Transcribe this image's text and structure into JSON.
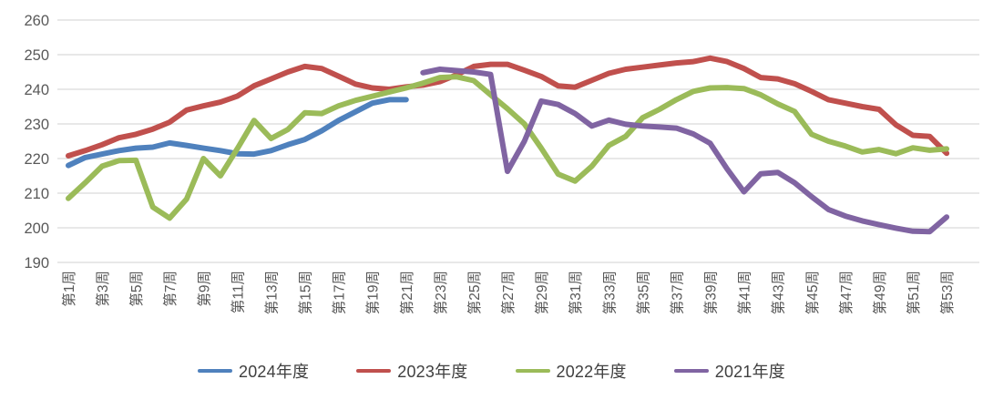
{
  "chart_data": {
    "type": "line",
    "title": "",
    "xlabel": "",
    "ylabel": "",
    "ylim": [
      190,
      260
    ],
    "y_ticks": [
      260,
      250,
      240,
      230,
      220,
      210,
      200,
      190
    ],
    "weeks_total": 53,
    "x_tick_step": 2,
    "x_tick_labels": [
      "第1周",
      "第3周",
      "第5周",
      "第7周",
      "第9周",
      "第11周",
      "第13周",
      "第15周",
      "第17周",
      "第19周",
      "第21周",
      "第23周",
      "第25周",
      "第27周",
      "第29周",
      "第31周",
      "第33周",
      "第35周",
      "第37周",
      "第39周",
      "第41周",
      "第43周",
      "第45周",
      "第47周",
      "第49周",
      "第51周",
      "第53周"
    ],
    "grid": "horizontal",
    "legend_position": "bottom",
    "colors": {
      "grid_line": "#d9d9d9",
      "tick_text": "#595959",
      "legend_text": "#3f3f3f",
      "background": "#ffffff"
    },
    "series": [
      {
        "name": "2024年度",
        "color": "#4F81BD",
        "values": [
          218,
          220.3,
          221.3,
          222.3,
          223,
          223.3,
          224.5,
          223.8,
          223,
          222.3,
          221.4,
          221.3,
          222.3,
          224,
          225.5,
          228,
          231,
          233.5,
          236,
          237,
          237,
          null,
          null,
          null,
          null,
          null,
          null,
          null,
          null,
          null,
          null,
          null,
          null,
          null,
          null,
          null,
          null,
          null,
          null,
          null,
          null,
          null,
          null,
          null,
          null,
          null,
          null,
          null,
          null,
          null,
          null,
          null,
          null
        ]
      },
      {
        "name": "2023年度",
        "color": "#C0504D",
        "values": [
          220.8,
          222.3,
          224,
          226,
          227,
          228.5,
          230.5,
          234,
          235.2,
          236.3,
          238,
          241,
          243,
          245,
          246.6,
          246,
          243.8,
          241.5,
          240.4,
          240,
          240.7,
          241.2,
          242.2,
          244.2,
          246.6,
          247.2,
          247.2,
          245.5,
          243.7,
          241,
          240.6,
          242.6,
          244.6,
          245.8,
          246.4,
          247,
          247.6,
          248,
          249,
          248,
          246,
          243.4,
          243,
          241.6,
          239.4,
          237,
          236,
          235,
          234.2,
          229.7,
          226.7,
          226.4,
          221.5
        ]
      },
      {
        "name": "2022年度",
        "color": "#9BBB59",
        "values": [
          208.5,
          213,
          217.8,
          219.4,
          219.5,
          206,
          202.8,
          208.3,
          220,
          215,
          222.8,
          231,
          225.8,
          228.4,
          233.2,
          233,
          235.2,
          236.8,
          238,
          239.2,
          240.4,
          241.8,
          243.4,
          243.6,
          242.5,
          238.4,
          234.4,
          230,
          223,
          215.5,
          213.5,
          217.8,
          223.8,
          226.4,
          231.8,
          234.2,
          237,
          239.4,
          240.4,
          240.5,
          240.2,
          238.4,
          235.8,
          233.6,
          227,
          225,
          223.6,
          221.9,
          222.6,
          221.4,
          223.1,
          222.4,
          222.8
        ]
      },
      {
        "name": "2021年度",
        "color": "#8064A2",
        "values": [
          null,
          null,
          null,
          null,
          null,
          null,
          null,
          null,
          null,
          null,
          null,
          null,
          null,
          null,
          null,
          null,
          null,
          null,
          null,
          null,
          null,
          244.8,
          245.8,
          245.4,
          245,
          244.3,
          216.3,
          225,
          236.6,
          235.6,
          233,
          229.4,
          231.1,
          229.9,
          229.4,
          229.1,
          228.8,
          227.1,
          224.4,
          217,
          210.4,
          215.6,
          216,
          213,
          209,
          205.3,
          203.4,
          202,
          200.9,
          199.9,
          199,
          198.9,
          203.1
        ]
      }
    ]
  },
  "legend": {
    "items": [
      {
        "label": "2024年度",
        "color": "#4F81BD"
      },
      {
        "label": "2023年度",
        "color": "#C0504D"
      },
      {
        "label": "2022年度",
        "color": "#9BBB59"
      },
      {
        "label": "2021年度",
        "color": "#8064A2"
      }
    ]
  }
}
